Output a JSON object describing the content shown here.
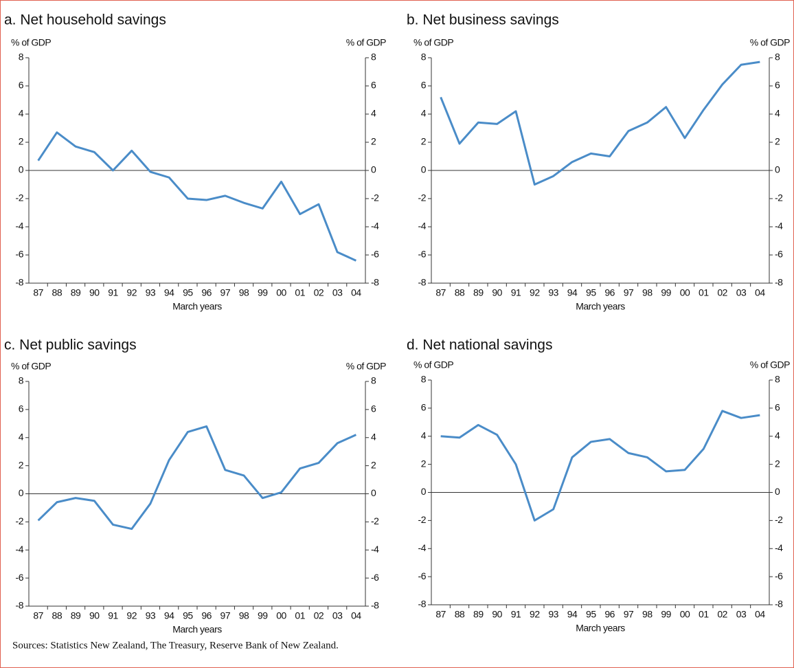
{
  "chart_data": [
    {
      "type": "line",
      "title": "a.  Net household savings",
      "ylabel": "% of GDP",
      "y2label": "% of GDP",
      "xlabel": "March years",
      "categories": [
        "87",
        "88",
        "89",
        "90",
        "91",
        "92",
        "93",
        "94",
        "95",
        "96",
        "97",
        "98",
        "99",
        "00",
        "01",
        "02",
        "03",
        "04"
      ],
      "values": [
        0.7,
        2.7,
        1.7,
        1.3,
        0.0,
        1.4,
        -0.1,
        -0.5,
        -2.0,
        -2.1,
        -1.8,
        -2.3,
        -2.7,
        -0.8,
        -3.1,
        -2.4,
        -5.8,
        -6.4
      ],
      "color": "#4a8cc8",
      "ylim": [
        -8,
        8
      ],
      "yticks": [
        -8,
        -6,
        -4,
        -2,
        0,
        2,
        4,
        6,
        8
      ],
      "y2lim": [
        -8,
        8
      ],
      "y2ticks": [
        -8,
        -6,
        -4,
        -2,
        0,
        2,
        4,
        6,
        8
      ]
    },
    {
      "type": "line",
      "title": "b.  Net business savings",
      "ylabel": "% of GDP",
      "y2label": "% of GDP",
      "xlabel": "March years",
      "categories": [
        "87",
        "88",
        "89",
        "90",
        "91",
        "92",
        "93",
        "94",
        "95",
        "96",
        "97",
        "98",
        "99",
        "00",
        "01",
        "02",
        "03",
        "04"
      ],
      "values": [
        5.2,
        1.9,
        3.4,
        3.3,
        4.2,
        -1.0,
        -0.4,
        0.6,
        1.2,
        1.0,
        2.8,
        3.4,
        4.5,
        2.3,
        4.3,
        6.1,
        7.5,
        7.7
      ],
      "color": "#4a8cc8",
      "ylim": [
        -8,
        8
      ],
      "yticks": [
        -8,
        -6,
        -4,
        -2,
        0,
        2,
        4,
        6,
        8
      ],
      "y2lim": [
        -8,
        8
      ],
      "y2ticks": [
        -8,
        -6,
        -4,
        -2,
        0,
        2,
        4,
        6,
        8
      ]
    },
    {
      "type": "line",
      "title": "c.  Net public savings",
      "ylabel": "% of GDP",
      "y2label": "% of GDP",
      "xlabel": "March years",
      "categories": [
        "87",
        "88",
        "89",
        "90",
        "91",
        "92",
        "93",
        "94",
        "95",
        "96",
        "97",
        "98",
        "99",
        "00",
        "01",
        "02",
        "03",
        "04"
      ],
      "values": [
        -1.9,
        -0.6,
        -0.3,
        -0.5,
        -2.2,
        -2.5,
        -0.7,
        2.4,
        4.4,
        4.8,
        1.7,
        1.3,
        -0.3,
        0.1,
        1.8,
        2.2,
        3.6,
        4.2
      ],
      "color": "#4a8cc8",
      "ylim": [
        -8,
        8
      ],
      "yticks": [
        -8,
        -6,
        -4,
        -2,
        0,
        2,
        4,
        6,
        8
      ],
      "y2lim": [
        -8,
        8
      ],
      "y2ticks": [
        -8,
        -6,
        -4,
        -2,
        0,
        2,
        4,
        6,
        8
      ]
    },
    {
      "type": "line",
      "title": "d.  Net national savings",
      "ylabel": "% of GDP",
      "y2label": "% of GDP",
      "xlabel": "March years",
      "categories": [
        "87",
        "88",
        "89",
        "90",
        "91",
        "92",
        "93",
        "94",
        "95",
        "96",
        "97",
        "98",
        "99",
        "00",
        "01",
        "02",
        "03",
        "04"
      ],
      "values": [
        4.0,
        3.9,
        4.8,
        4.1,
        2.0,
        -2.0,
        -1.2,
        2.5,
        3.6,
        3.8,
        2.8,
        2.5,
        1.5,
        1.6,
        3.1,
        5.8,
        5.3,
        5.5
      ],
      "color": "#4a8cc8",
      "ylim": [
        -8,
        8
      ],
      "yticks": [
        -8,
        -6,
        -4,
        -2,
        0,
        2,
        4,
        6,
        8
      ],
      "y2lim": [
        -8,
        8
      ],
      "y2ticks": [
        -8,
        -6,
        -4,
        -2,
        0,
        2,
        4,
        6,
        8
      ]
    }
  ],
  "source": "Sources:  Statistics New Zealand, The Treasury, Reserve Bank of New Zealand."
}
